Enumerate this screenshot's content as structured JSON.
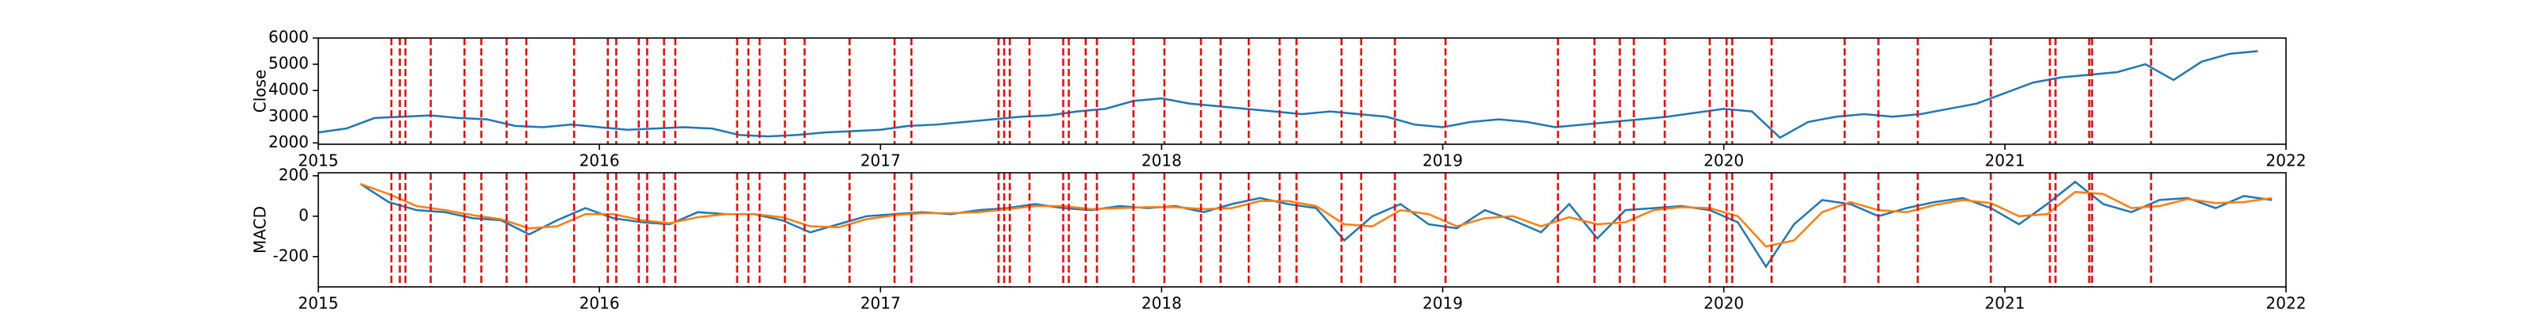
{
  "chart_data": [
    {
      "type": "line",
      "ylabel": "Close",
      "x": [
        2015.0,
        2015.1,
        2015.2,
        2015.3,
        2015.4,
        2015.5,
        2015.6,
        2015.7,
        2015.8,
        2015.9,
        2016.0,
        2016.1,
        2016.2,
        2016.3,
        2016.4,
        2016.5,
        2016.6,
        2016.7,
        2016.8,
        2016.9,
        2017.0,
        2017.1,
        2017.2,
        2017.3,
        2017.4,
        2017.5,
        2017.6,
        2017.7,
        2017.8,
        2017.9,
        2018.0,
        2018.1,
        2018.2,
        2018.3,
        2018.4,
        2018.5,
        2018.6,
        2018.7,
        2018.8,
        2018.9,
        2019.0,
        2019.1,
        2019.2,
        2019.3,
        2019.4,
        2019.5,
        2019.6,
        2019.7,
        2019.8,
        2019.9,
        2020.0,
        2020.1,
        2020.2,
        2020.3,
        2020.4,
        2020.5,
        2020.6,
        2020.7,
        2020.8,
        2020.9,
        2021.0,
        2021.1,
        2021.2,
        2021.3,
        2021.4,
        2021.5,
        2021.6,
        2021.7,
        2021.8,
        2021.9
      ],
      "series": [
        {
          "color": "#1f77b4",
          "values": [
            2400,
            2550,
            2950,
            3000,
            3050,
            2950,
            2900,
            2650,
            2600,
            2700,
            2600,
            2500,
            2550,
            2600,
            2550,
            2300,
            2250,
            2300,
            2400,
            2450,
            2500,
            2650,
            2700,
            2800,
            2900,
            3000,
            3050,
            3200,
            3300,
            3600,
            3700,
            3500,
            3400,
            3300,
            3200,
            3100,
            3200,
            3100,
            3000,
            2700,
            2600,
            2800,
            2900,
            2800,
            2600,
            2700,
            2800,
            2900,
            3000,
            3150,
            3300,
            3200,
            2200,
            2800,
            3000,
            3100,
            3000,
            3100,
            3300,
            3500,
            3900,
            4300,
            4500,
            4600,
            4700,
            5000,
            4400,
            5100,
            5400,
            5500
          ]
        }
      ],
      "xlim": [
        2015,
        2022
      ],
      "xticks": [
        2015,
        2016,
        2017,
        2018,
        2019,
        2020,
        2021,
        2022
      ],
      "ylim": [
        1950,
        6000
      ],
      "yticks": [
        2000,
        3000,
        4000,
        5000,
        6000
      ],
      "vlines": [
        2015.26,
        2015.29,
        2015.31,
        2015.4,
        2015.52,
        2015.58,
        2015.67,
        2015.74,
        2015.91,
        2016.03,
        2016.06,
        2016.14,
        2016.17,
        2016.23,
        2016.27,
        2016.49,
        2016.53,
        2016.57,
        2016.66,
        2016.73,
        2016.89,
        2017.05,
        2017.11,
        2017.42,
        2017.44,
        2017.46,
        2017.53,
        2017.65,
        2017.67,
        2017.73,
        2017.77,
        2017.9,
        2018.01,
        2018.14,
        2018.21,
        2018.31,
        2018.42,
        2018.48,
        2018.64,
        2018.71,
        2018.83,
        2019.01,
        2019.41,
        2019.54,
        2019.63,
        2019.68,
        2019.79,
        2019.95,
        2020.01,
        2020.03,
        2020.17,
        2020.43,
        2020.55,
        2020.69,
        2020.95,
        2021.16,
        2021.18,
        2021.3,
        2021.31,
        2021.52
      ],
      "vline_color": "#ff0000"
    },
    {
      "type": "line",
      "ylabel": "MACD",
      "x": [
        2015.15,
        2015.25,
        2015.35,
        2015.45,
        2015.55,
        2015.65,
        2015.75,
        2015.85,
        2015.95,
        2016.05,
        2016.15,
        2016.25,
        2016.35,
        2016.45,
        2016.55,
        2016.65,
        2016.75,
        2016.85,
        2016.95,
        2017.05,
        2017.15,
        2017.25,
        2017.35,
        2017.45,
        2017.55,
        2017.65,
        2017.75,
        2017.85,
        2017.95,
        2018.05,
        2018.15,
        2018.25,
        2018.35,
        2018.45,
        2018.55,
        2018.65,
        2018.75,
        2018.85,
        2018.95,
        2019.05,
        2019.15,
        2019.25,
        2019.35,
        2019.45,
        2019.55,
        2019.65,
        2019.75,
        2019.85,
        2019.95,
        2020.05,
        2020.15,
        2020.25,
        2020.35,
        2020.45,
        2020.55,
        2020.65,
        2020.75,
        2020.85,
        2020.95,
        2021.05,
        2021.15,
        2021.25,
        2021.35,
        2021.45,
        2021.55,
        2021.65,
        2021.75,
        2021.85,
        2021.95
      ],
      "series": [
        {
          "color": "#1f77b4",
          "values": [
            160,
            70,
            30,
            20,
            -10,
            -20,
            -90,
            -20,
            40,
            -10,
            -30,
            -40,
            20,
            10,
            10,
            -20,
            -80,
            -40,
            0,
            10,
            20,
            10,
            30,
            40,
            60,
            40,
            30,
            50,
            40,
            50,
            20,
            60,
            90,
            60,
            40,
            -120,
            0,
            60,
            -40,
            -60,
            30,
            -20,
            -80,
            60,
            -110,
            30,
            40,
            50,
            30,
            -30,
            -250,
            -40,
            80,
            60,
            0,
            40,
            70,
            90,
            40,
            -40,
            60,
            170,
            60,
            20,
            80,
            90,
            40,
            100,
            80
          ]
        },
        {
          "color": "#ff7f0e",
          "values": [
            160,
            110,
            50,
            30,
            5,
            -15,
            -60,
            -50,
            10,
            10,
            -20,
            -35,
            -5,
            10,
            10,
            -5,
            -50,
            -55,
            -15,
            5,
            15,
            15,
            20,
            35,
            50,
            50,
            35,
            40,
            45,
            45,
            35,
            40,
            75,
            75,
            50,
            -40,
            -50,
            30,
            10,
            -50,
            -10,
            0,
            -50,
            -5,
            -40,
            -30,
            30,
            45,
            40,
            0,
            -150,
            -120,
            20,
            70,
            30,
            20,
            55,
            80,
            65,
            0,
            10,
            120,
            110,
            40,
            50,
            85,
            65,
            70,
            90
          ]
        }
      ],
      "xlim": [
        2015,
        2022
      ],
      "xticks": [
        2015,
        2016,
        2017,
        2018,
        2019,
        2020,
        2021,
        2022
      ],
      "ylim": [
        -350,
        215
      ],
      "yticks": [
        -200,
        0,
        200
      ],
      "vlines": [
        2015.26,
        2015.29,
        2015.31,
        2015.4,
        2015.52,
        2015.58,
        2015.67,
        2015.74,
        2015.91,
        2016.03,
        2016.06,
        2016.14,
        2016.17,
        2016.23,
        2016.27,
        2016.49,
        2016.53,
        2016.57,
        2016.66,
        2016.73,
        2016.89,
        2017.05,
        2017.11,
        2017.42,
        2017.44,
        2017.46,
        2017.53,
        2017.65,
        2017.67,
        2017.73,
        2017.77,
        2017.9,
        2018.01,
        2018.14,
        2018.21,
        2018.31,
        2018.42,
        2018.48,
        2018.64,
        2018.71,
        2018.83,
        2019.01,
        2019.41,
        2019.54,
        2019.63,
        2019.68,
        2019.79,
        2019.95,
        2020.01,
        2020.03,
        2020.17,
        2020.43,
        2020.55,
        2020.69,
        2020.95,
        2021.16,
        2021.18,
        2021.3,
        2021.31,
        2021.52
      ],
      "vline_color": "#ff0000"
    }
  ]
}
